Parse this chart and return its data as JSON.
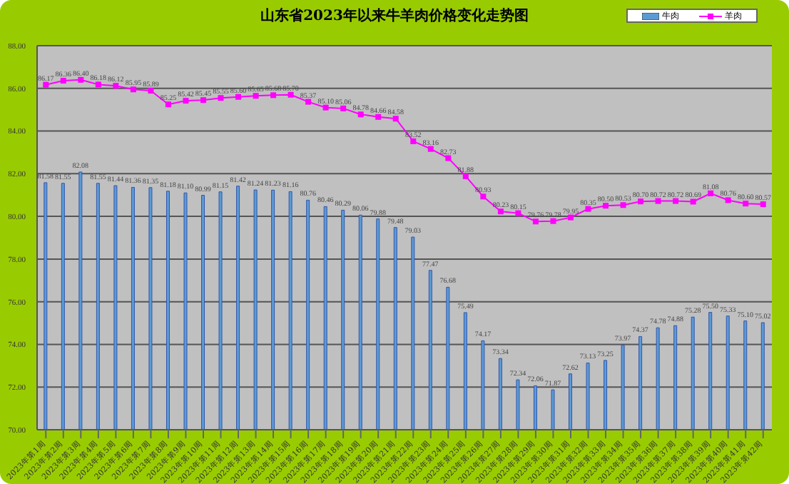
{
  "chart_data": {
    "type": "bar",
    "title": "山东省2023年以来牛羊肉价格变化走势图",
    "categories": [
      "2023年第1周",
      "2023年第2周",
      "2023年第3周",
      "2023年第4周",
      "2023年第5周",
      "2023年第6周",
      "2023年第7周",
      "2023年第8周",
      "2023年第9周",
      "2023年第10周",
      "2023年第11周",
      "2023年第12周",
      "2023年第13周",
      "2023年第14周",
      "2023年第15周",
      "2023年第16周",
      "2023年第17周",
      "2023年第18周",
      "2023年第19周",
      "2023年第20周",
      "2023年第21周",
      "2023年第22周",
      "2023年第23周",
      "2023年第24周",
      "2023年第25周",
      "2023年第26周",
      "2023年第27周",
      "2023年第28周",
      "2023年第29周",
      "2023年第30周",
      "2023年第31周",
      "2023年第32周",
      "2023年第33周",
      "2023年第34周",
      "2023年第35周",
      "2023年第36周",
      "2023年第37周",
      "2023年第38周",
      "2023年第39周",
      "2023年第40周",
      "2023年第41周",
      "2023年第42周"
    ],
    "series": [
      {
        "name": "牛肉",
        "color": "#5b9bd5",
        "values": [
          81.58,
          81.55,
          82.08,
          81.55,
          81.44,
          81.36,
          81.35,
          81.18,
          81.1,
          80.99,
          81.15,
          81.42,
          81.24,
          81.23,
          81.16,
          80.76,
          80.46,
          80.29,
          80.06,
          79.88,
          79.48,
          79.03,
          77.47,
          76.68,
          75.49,
          74.17,
          73.34,
          72.34,
          72.06,
          71.87,
          72.62,
          73.13,
          73.25,
          73.97,
          74.37,
          74.78,
          74.88,
          75.28,
          75.5,
          75.33,
          75.1,
          75.02
        ],
        "value_labels": [
          "81.58",
          "81.55",
          "82.08",
          "81.55",
          "81.44",
          "81.36",
          "81.35",
          "81.18",
          "81.10",
          "80.99",
          "81.15",
          "81.42",
          "81.24",
          "81.23",
          "81.16",
          "80.76",
          "80.46",
          "80.29",
          "80.06",
          "79.88",
          "79.48",
          "79.03",
          "77.47",
          "76.68",
          "75.49",
          "74.17",
          "73.34",
          "72.34",
          "72.06",
          "71.87",
          "72.62",
          "73.13",
          "73.25",
          "73.97",
          "74.37",
          "74.78",
          "74.88",
          "75.28",
          "75.50",
          "75.33",
          "75.10",
          "75.02"
        ]
      },
      {
        "name": "羊肉",
        "type": "line",
        "color": "#ff00ff",
        "values": [
          86.17,
          86.36,
          86.4,
          86.18,
          86.12,
          85.95,
          85.89,
          85.25,
          85.42,
          85.45,
          85.55,
          85.6,
          85.65,
          85.68,
          85.7,
          85.37,
          85.1,
          85.06,
          84.78,
          84.66,
          84.58,
          83.52,
          83.16,
          82.73,
          81.88,
          80.93,
          80.23,
          80.15,
          79.76,
          79.78,
          79.95,
          80.35,
          80.5,
          80.53,
          80.7,
          80.72,
          80.72,
          80.69,
          81.08,
          80.76,
          80.6,
          80.57
        ],
        "value_labels": [
          "86.17",
          "86.36",
          "86.40",
          "86.18",
          "86.12",
          "85.95",
          "85.89",
          "85.25",
          "85.42",
          "85.45",
          "85.55",
          "85.60",
          "85.65",
          "85.68",
          "85.70",
          "85.37",
          "85.10",
          "85.06",
          "84.78",
          "84.66",
          "84.58",
          "83.52",
          "83.16",
          "82.73",
          "81.88",
          "80.93",
          "80.23",
          "80.15",
          "79.76",
          "79.78",
          "79.95",
          "80.35",
          "80.50",
          "80.53",
          "80.70",
          "80.72",
          "80.72",
          "80.69",
          "81.08",
          "80.76",
          "80.60",
          "80.57"
        ]
      }
    ],
    "ylim": [
      70,
      88
    ],
    "yticks": [
      {
        "value": 70,
        "label": "70.00"
      },
      {
        "value": 72,
        "label": "72.00"
      },
      {
        "value": 74,
        "label": "74.00"
      },
      {
        "value": 76,
        "label": "76.00"
      },
      {
        "value": 78,
        "label": "78.00"
      },
      {
        "value": 80,
        "label": "80.00"
      },
      {
        "value": 82,
        "label": "82.00"
      },
      {
        "value": 84,
        "label": "84.00"
      },
      {
        "value": 86,
        "label": "86.00"
      },
      {
        "value": 88,
        "label": "88.00"
      }
    ],
    "grid": "y",
    "legend": "top right",
    "marker": "square"
  }
}
